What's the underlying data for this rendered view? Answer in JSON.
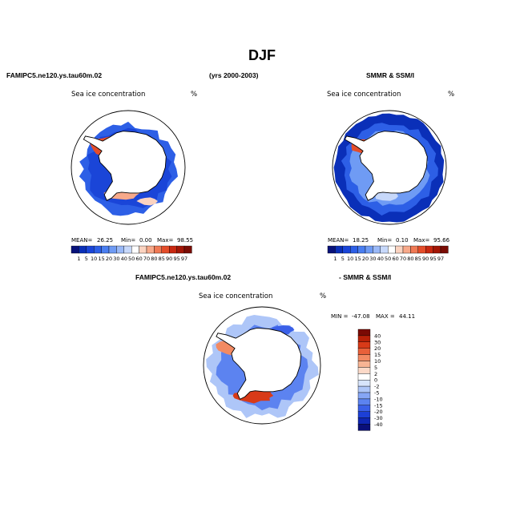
{
  "main_title": "DJF",
  "headers": {
    "left_model": "FAMIPC5.ne120.ys.tau60m.02",
    "period": "(yrs 2000-2003)",
    "right_obs": "SMMR & SSM/I",
    "diff_model": "FAMIPC5.ne120.ys.tau60m.02",
    "diff_obs": "- SMMR & SSM/I"
  },
  "chart_data": [
    {
      "type": "heatmap",
      "projection": "south-polar-stereographic",
      "title": "Sea ice concentration",
      "units": "%",
      "stats": {
        "mean_label": "MEAN=",
        "mean": "26.25",
        "min_label": "Min=",
        "min": "0.00",
        "max_label": "Max=",
        "max": "98.55"
      },
      "levels": [
        "1",
        "5",
        "10",
        "15",
        "20",
        "30",
        "40",
        "50",
        "60",
        "70",
        "80",
        "85",
        "90",
        "95",
        "97"
      ]
    },
    {
      "type": "heatmap",
      "projection": "south-polar-stereographic",
      "title": "Sea ice concentration",
      "units": "%",
      "stats": {
        "mean_label": "MEAN=",
        "mean": "18.25",
        "min_label": "Min=",
        "min": "0.10",
        "max_label": "Max=",
        "max": "95.66"
      },
      "levels": [
        "1",
        "5",
        "10",
        "15",
        "20",
        "30",
        "40",
        "50",
        "60",
        "70",
        "80",
        "85",
        "90",
        "95",
        "97"
      ]
    },
    {
      "type": "heatmap",
      "projection": "south-polar-stereographic",
      "title": "Sea ice concentration",
      "units": "%",
      "stats": {
        "min_label": "MIN =",
        "min": "-47.08",
        "max_label": "MAX =",
        "max": "44.11"
      },
      "levels": [
        "40",
        "30",
        "20",
        "15",
        "10",
        "5",
        "2",
        "0",
        "-2",
        "-5",
        "-10",
        "-15",
        "-20",
        "-30",
        "-40"
      ]
    }
  ],
  "colors": {
    "seq_scale": [
      "#08127a",
      "#0a2fb8",
      "#1a45d8",
      "#2d5fe6",
      "#4a7ef0",
      "#6f9bf4",
      "#9ab9f7",
      "#c7d8fa",
      "#ffffff",
      "#fbd3c0",
      "#f7a98a",
      "#f07a55",
      "#e44d2a",
      "#c82810",
      "#a31606",
      "#7a0c04"
    ],
    "div_scale": [
      "#0a0f7a",
      "#0f26b3",
      "#1c3fd6",
      "#3a60e8",
      "#5c83f0",
      "#86a6f5",
      "#aec6f8",
      "#d7e4fb",
      "#ffffff",
      "#fbd9c8",
      "#f7b494",
      "#f28a63",
      "#e8603a",
      "#d83a18",
      "#b82108",
      "#7a0a04"
    ],
    "land": "#ffffff",
    "outline": "#000000"
  }
}
